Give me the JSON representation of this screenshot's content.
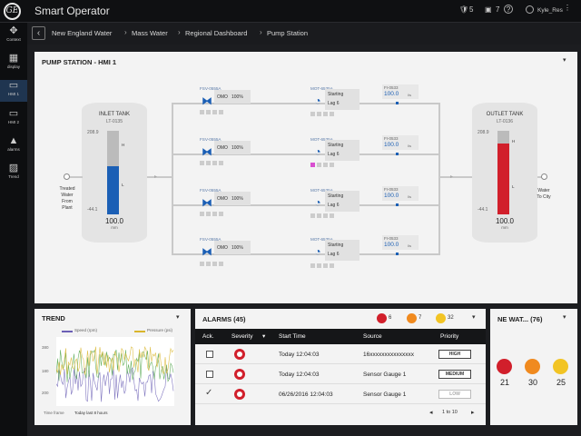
{
  "app": {
    "title": "Smart Operator",
    "logo_text": "GE"
  },
  "topbar": {
    "alerts_count": "5",
    "messages_count": "7",
    "user_name": "Kyle_Res"
  },
  "sidebar": {
    "items": [
      {
        "label": "Context",
        "icon": "context-icon"
      },
      {
        "label": "display",
        "icon": "grid-icon"
      },
      {
        "label": "HMI 1",
        "icon": "monitor-icon"
      },
      {
        "label": "HMI 2",
        "icon": "monitor-icon"
      },
      {
        "label": "alarms",
        "icon": "warning-icon"
      },
      {
        "label": "Trend",
        "icon": "chart-icon"
      }
    ]
  },
  "breadcrumb": [
    "New England Water",
    "Mass Water",
    "Regional Dashboard",
    "Pump Station"
  ],
  "hmi": {
    "title": "PUMP STATION - HMI 1",
    "inlet": {
      "name": "INLET TANK",
      "tag": "LT-0135",
      "top_value": "208.9",
      "bottom_value": "-44.1",
      "value": "100.0",
      "unit": "mm",
      "marks": [
        "H",
        "L"
      ],
      "source_label": [
        "Treated",
        "Water",
        "From",
        "Plant"
      ],
      "level": 0.58
    },
    "outlet": {
      "name": "OUTLET TANK",
      "tag": "LT-0136",
      "top_value": "208.9",
      "bottom_value": "-44.1",
      "value": "100.0",
      "unit": "mm",
      "marks": [
        "H",
        "L"
      ],
      "dest_label": [
        "Water",
        "To City"
      ],
      "level": 0.85
    },
    "trains": [
      {
        "valve": "FSV-0555A",
        "valve_state": "OMO",
        "valve_pct": "100%",
        "pump": "MOT-6535A",
        "status": "Starting",
        "lag": "Lag 6",
        "flow_tag": "FI-0533",
        "flow_value": "100.0",
        "flow_unit": "l/s"
      },
      {
        "valve": "FSV-0555A",
        "valve_state": "OMO",
        "valve_pct": "100%",
        "pump": "MOT-6535A",
        "status": "Starting",
        "lag": "Lag 6",
        "flow_tag": "FI-0533",
        "flow_value": "100.0",
        "flow_unit": "l/s"
      },
      {
        "valve": "FSV-0555A",
        "valve_state": "OMO",
        "valve_pct": "100%",
        "pump": "MOT-6535A",
        "status": "Starting",
        "lag": "Lag 6",
        "flow_tag": "FI-0533",
        "flow_value": "100.0",
        "flow_unit": "l/s"
      },
      {
        "valve": "FSV-0555A",
        "valve_state": "OMO",
        "valve_pct": "100%",
        "pump": "MOT-6535A",
        "status": "Starting",
        "lag": "Lag 6",
        "flow_tag": "FI-0533",
        "flow_value": "100.0",
        "flow_unit": "l/s"
      }
    ]
  },
  "trend": {
    "title": "TREND",
    "legend": [
      "Speed (rpm)",
      "Pressure (psi)"
    ],
    "y_ticks": [
      "380",
      "180",
      "200"
    ],
    "timeframe_label": "Time frame",
    "timeframe_value": "Today last 8 hours",
    "colors": {
      "speed": "#6b5fb5",
      "pressure": "#d9b52b",
      "other": "#4fa54a"
    }
  },
  "alarms": {
    "title": "ALARMS (45)",
    "counts": {
      "critical": "6",
      "warning": "7",
      "info": "32"
    },
    "columns": [
      "Ack.",
      "Severity",
      "Start Time",
      "Source",
      "Priority"
    ],
    "rows": [
      {
        "ack": "unchecked",
        "start": "Today 12:04:03",
        "source": "16xxxxxxxxxxxxxxx",
        "priority": "HIGH"
      },
      {
        "ack": "unchecked",
        "start": "Today 12:04:03",
        "source": "Sensor Gauge 1",
        "priority": "MEDIUM"
      },
      {
        "ack": "checked",
        "start": "06/26/2016 12:04:03",
        "source": "Sensor Gauge 1",
        "priority": "LOW"
      }
    ],
    "pagination": "1 to 10"
  },
  "newater": {
    "title": "NE WAT... (76)",
    "counts": [
      {
        "value": "21",
        "color": "#d11f2b"
      },
      {
        "value": "30",
        "color": "#f08a1f"
      },
      {
        "value": "25",
        "color": "#f2c424"
      }
    ]
  }
}
